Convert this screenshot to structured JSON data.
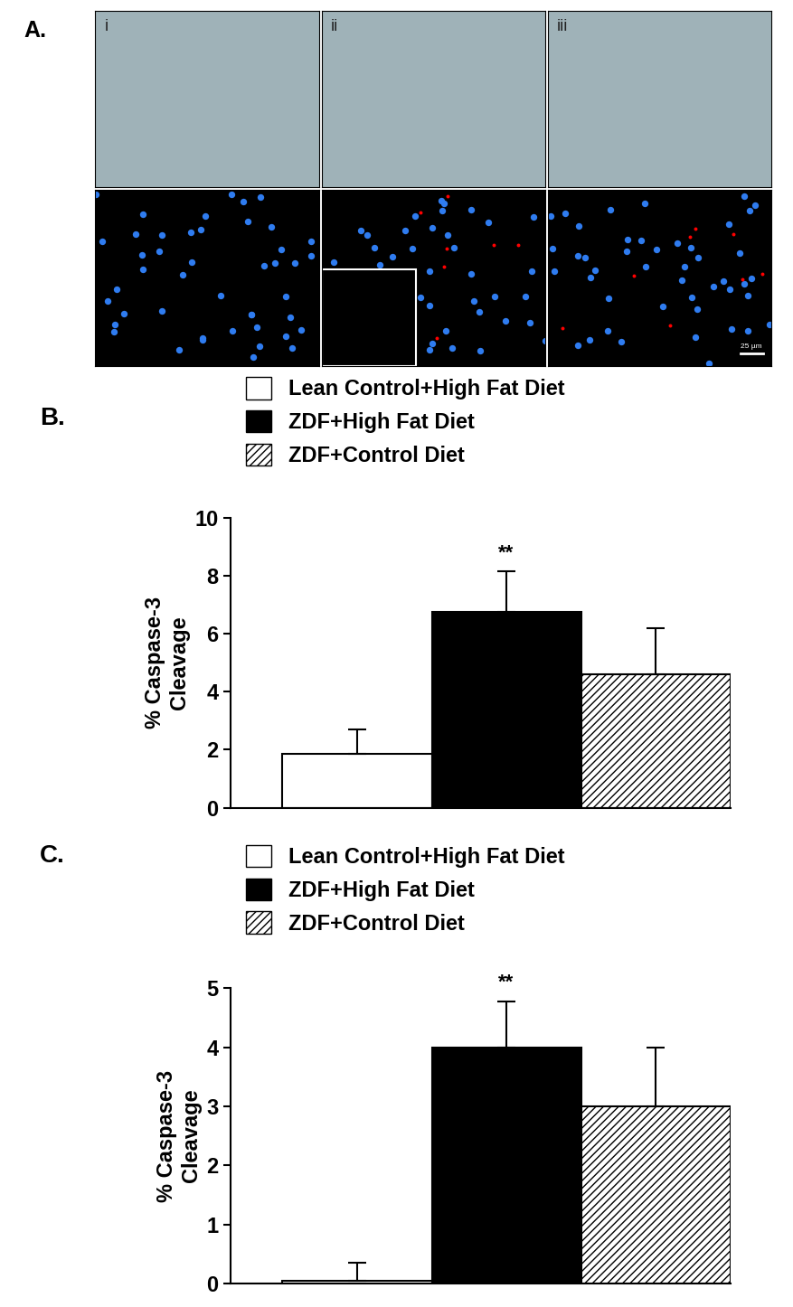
{
  "panel_a": {
    "label": "A.",
    "panels": [
      "i",
      "ii",
      "iii"
    ],
    "scale_bar": "25 µm"
  },
  "chart_data": [
    {
      "type": "bar",
      "title": "B.",
      "y_label": "% Caspase-3\nCleavage",
      "categories": [
        null,
        null,
        null
      ],
      "series": [
        {
          "name": "Lean Control+High Fat Diet",
          "color": "#ffffff",
          "values": [
            1.85,
            null,
            null
          ],
          "errors": [
            0.85,
            null,
            null
          ]
        },
        {
          "name": "ZDF+High Fat Diet",
          "color": "#000000",
          "values": [
            null,
            6.75,
            null
          ],
          "errors": [
            null,
            1.4,
            null
          ]
        },
        {
          "name": "ZDF+Control Diet",
          "color": "#ffffff",
          "values": [
            null,
            null,
            4.6
          ],
          "errors": [
            null,
            null,
            1.6
          ]
        }
      ],
      "annotations": [
        {
          "text": "**",
          "category": 1
        }
      ],
      "ylim": [
        0,
        10
      ],
      "yticks": [
        0,
        2,
        4,
        6,
        8,
        10
      ],
      "legend": "upper center",
      "tick_labels": "y",
      "grid": false
    },
    {
      "type": "bar",
      "title": "C.",
      "y_label": "% Caspase-3\nCleavage",
      "categories": [
        null,
        null,
        null
      ],
      "series": [
        {
          "name": "Lean Control+High Fat Diet",
          "color": "#ffffff",
          "values": [
            0.05,
            null,
            null
          ],
          "errors": [
            0.3,
            null,
            null
          ]
        },
        {
          "name": "ZDF+High Fat Diet",
          "color": "#000000",
          "values": [
            null,
            4.0,
            null
          ],
          "errors": [
            null,
            0.78,
            null
          ]
        },
        {
          "name": "ZDF+Control Diet",
          "color": "#ffffff",
          "values": [
            null,
            null,
            3.0
          ],
          "errors": [
            null,
            null,
            1.0
          ]
        }
      ],
      "annotations": [
        {
          "text": "**",
          "category": 1
        }
      ],
      "ylim": [
        0,
        5
      ],
      "yticks": [
        0,
        1,
        2,
        3,
        4,
        5
      ],
      "legend": "upper center",
      "tick_labels": "y",
      "grid": false
    }
  ]
}
